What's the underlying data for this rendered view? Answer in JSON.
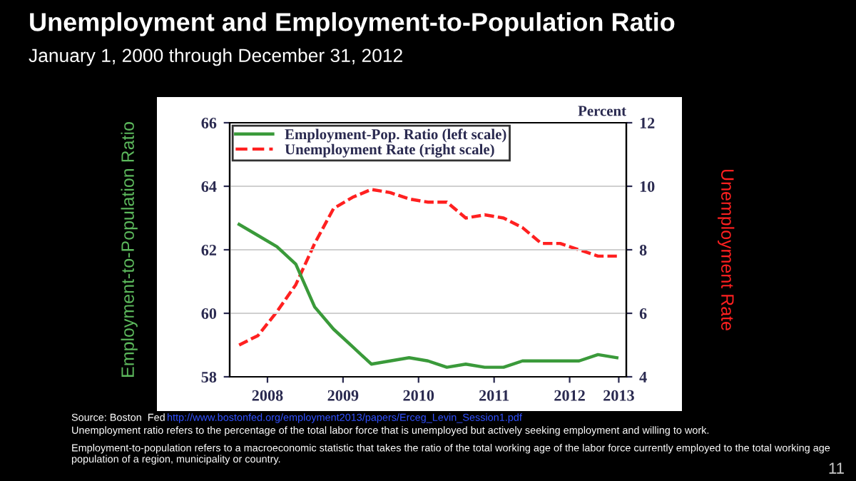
{
  "chart_data": {
    "type": "line",
    "title": "Unemployment and Employment-to-Population Ratio",
    "subtitle": "January 1, 2000 through December 31, 2012",
    "ylabel": "Employment-to-Population Ratio",
    "y2label": "Unemployment Rate",
    "annotations": [
      "Percent",
      "Source: Boston  Fed",
      "http://www.bostonfed.org/employment2013/papers/Erceg_Levin_Session1.pdf",
      "Unemployment ratio refers to the percentage of the total labor force that is unemployed but actively seeking employment and willing to work.",
      "Employment-to-population refers to a macroeconomic statistic that takes the ratio of the total working age of the labor force currently employed to the total working age population of a region, municipality or country.",
      "11"
    ],
    "x": [
      2008.125,
      2008.375,
      2008.625,
      2008.875,
      2009.125,
      2009.375,
      2009.625,
      2009.875,
      2010.125,
      2010.375,
      2010.625,
      2010.875,
      2011.125,
      2011.375,
      2011.625,
      2011.875,
      2012.125,
      2012.375,
      2012.625,
      2012.875,
      2013.125
    ],
    "series": [
      {
        "name": "Employment-Pop. Ratio (left scale)",
        "color": "#3a9a3a",
        "line_style": "solid",
        "values": [
          62.8,
          62.45,
          62.1,
          61.55,
          60.2,
          59.5,
          58.95,
          58.4,
          58.5,
          58.6,
          58.5,
          58.3,
          58.4,
          58.3,
          58.3,
          58.5,
          58.5,
          58.5,
          58.5,
          58.7,
          58.6
        ]
      },
      {
        "name": "Unemployment Rate (right scale)",
        "color": "#ff2020",
        "line_style": "dashed",
        "axis": "y2",
        "values": [
          5.0,
          5.3,
          6.05,
          6.9,
          8.2,
          9.3,
          9.65,
          9.9,
          9.8,
          9.6,
          9.5,
          9.5,
          9.0,
          9.1,
          9.0,
          8.7,
          8.2,
          8.2,
          8.0,
          7.8,
          7.8
        ]
      }
    ],
    "xlim": [
      2008,
      2013.25
    ],
    "xticks": [
      {
        "value": 2008.5,
        "label": "2008"
      },
      {
        "value": 2009.5,
        "label": "2009"
      },
      {
        "value": 2010.5,
        "label": "2010"
      },
      {
        "value": 2011.5,
        "label": "2011"
      },
      {
        "value": 2012.5,
        "label": "2012"
      },
      {
        "value": 2013.15,
        "label": "2013"
      }
    ],
    "ylim": [
      58,
      66
    ],
    "yticks": [
      58,
      60,
      62,
      64,
      66
    ],
    "y2lim": [
      4,
      12
    ],
    "y2ticks": [
      4,
      6,
      8,
      10,
      12
    ],
    "grid": "y",
    "legend": "top left",
    "marker": "none"
  }
}
